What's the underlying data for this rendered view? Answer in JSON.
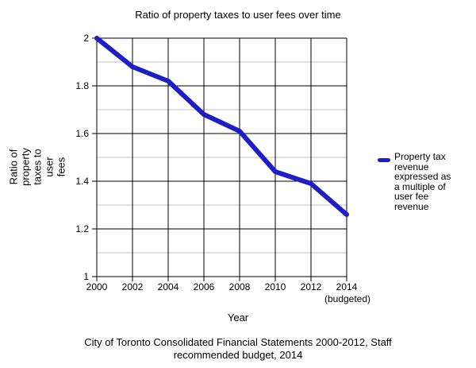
{
  "title": "Ratio of property taxes to user fees over time",
  "axes": {
    "x_title": "Year",
    "y_title": "Ratio of property taxes to user fees",
    "y_title_display": "Ratio of\nproperty\ntaxes to\nuser\nfees",
    "x_ticks": [
      "2000",
      "2002",
      "2004",
      "2006",
      "2008",
      "2010",
      "2012",
      "2014"
    ],
    "x_last_tick_note": "(budgeted)",
    "y_ticks": [
      "2",
      "1.8",
      "1.6",
      "1.4",
      "1.2",
      "1"
    ]
  },
  "legend": {
    "label": "Property tax revenue expressed as a multiple of user fee revenue",
    "label_display": "Property tax\nrevenue\nexpressed as\na multiple of\nuser fee\nrevenue"
  },
  "caption_display": "City of Toronto Consolidated Financial Statements 2000-2012, Staff\nrecommended budget, 2014",
  "colors": {
    "line": "#1e1ec8",
    "major_grid": "#000000",
    "minor_grid": "#c0c0c0",
    "text": "#000000",
    "background": "#ffffff"
  },
  "chart_data": {
    "type": "line",
    "x": [
      2000,
      2002,
      2004,
      2006,
      2008,
      2010,
      2012,
      2014
    ],
    "x_tick_labels": [
      "2000",
      "2002",
      "2004",
      "2006",
      "2008",
      "2010",
      "2012",
      "2014 (budgeted)"
    ],
    "series": [
      {
        "name": "Property tax revenue expressed as a multiple of user fee revenue",
        "values": [
          2.0,
          1.88,
          1.82,
          1.68,
          1.61,
          1.44,
          1.39,
          1.26
        ],
        "color": "#1e1ec8"
      }
    ],
    "title": "Ratio of property taxes to user fees over time",
    "xlabel": "Year",
    "ylabel": "Ratio of property taxes to user fees",
    "xlim": [
      2000,
      2014
    ],
    "ylim": [
      1,
      2
    ],
    "y_major_step": 0.2,
    "y_minor_step": 0.1,
    "grid": true,
    "legend_position": "right"
  }
}
